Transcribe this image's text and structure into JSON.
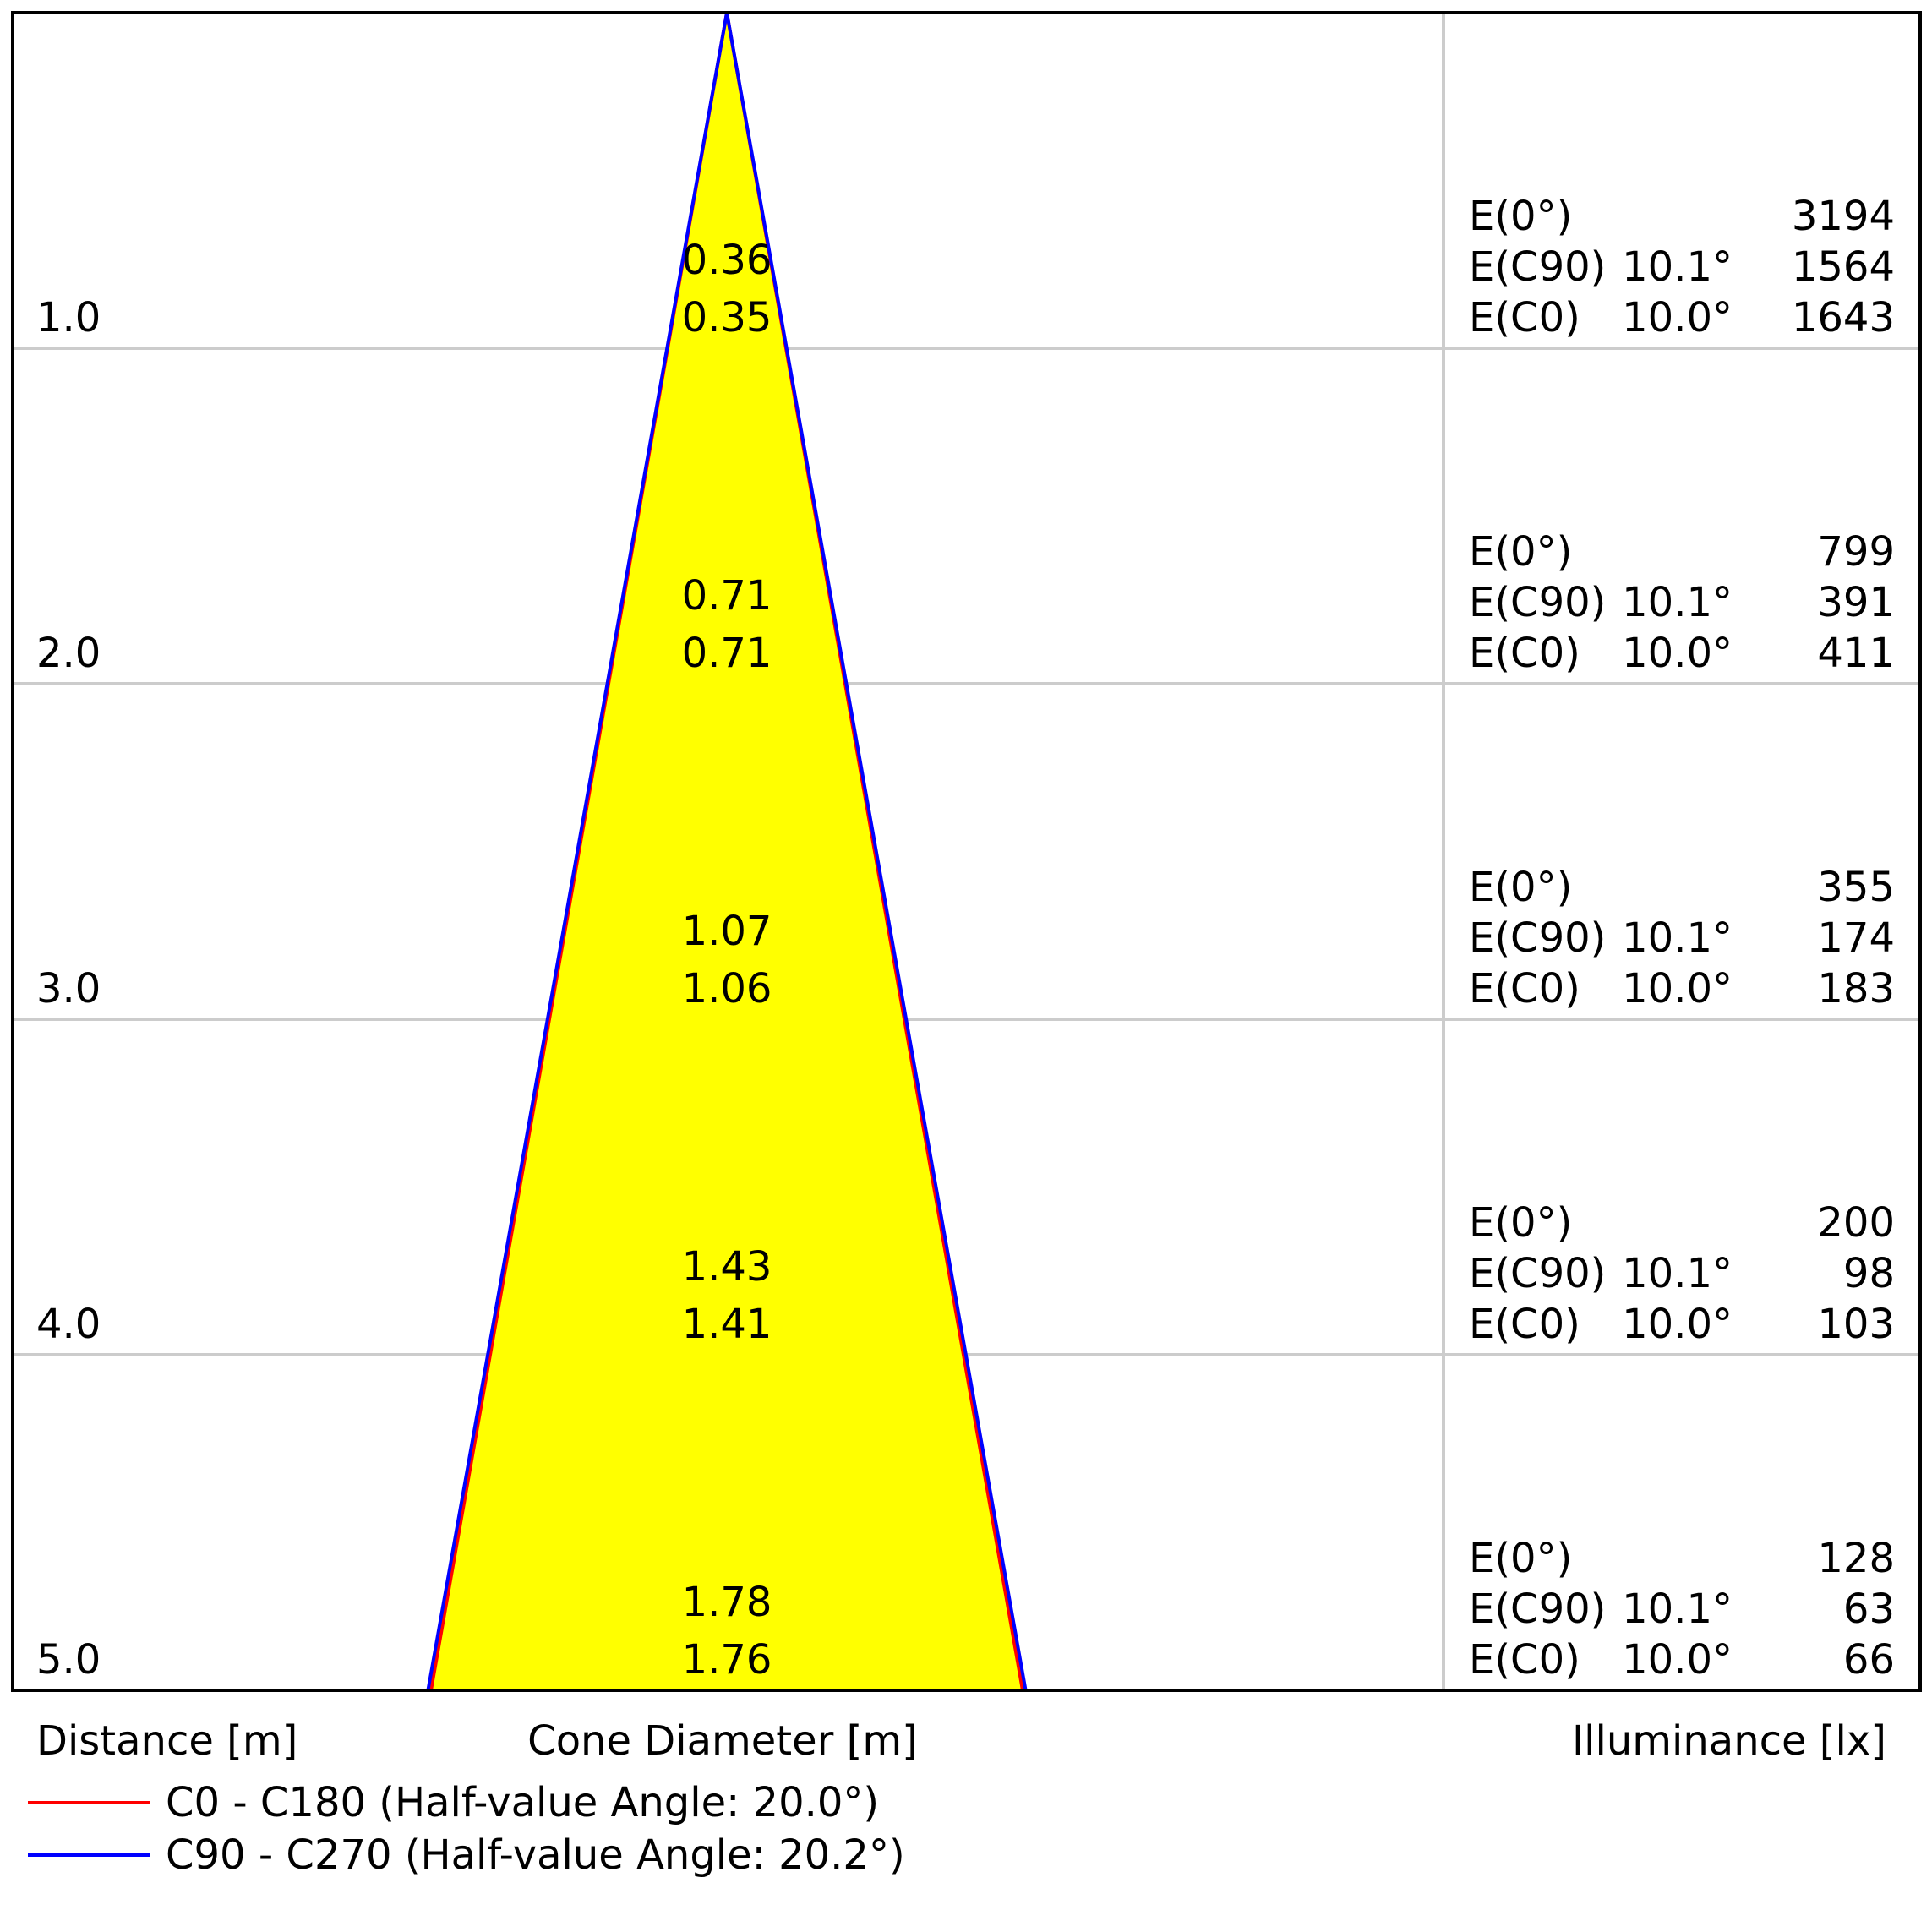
{
  "chart_data": {
    "type": "cone-diagram",
    "axis_labels": {
      "distance": "Distance [m]",
      "cone": "Cone Diameter [m]",
      "illuminance": "Illuminance [lx]"
    },
    "rows": [
      {
        "distance": "1.0",
        "c90_diameter": "0.36",
        "c0_diameter": "0.35",
        "illuminance": [
          {
            "name": "E(0°)",
            "angle": "",
            "value": "3194"
          },
          {
            "name": "E(C90)",
            "angle": "10.1°",
            "value": "1564"
          },
          {
            "name": "E(C0)",
            "angle": "10.0°",
            "value": "1643"
          }
        ]
      },
      {
        "distance": "2.0",
        "c90_diameter": "0.71",
        "c0_diameter": "0.71",
        "illuminance": [
          {
            "name": "E(0°)",
            "angle": "",
            "value": "799"
          },
          {
            "name": "E(C90)",
            "angle": "10.1°",
            "value": "391"
          },
          {
            "name": "E(C0)",
            "angle": "10.0°",
            "value": "411"
          }
        ]
      },
      {
        "distance": "3.0",
        "c90_diameter": "1.07",
        "c0_diameter": "1.06",
        "illuminance": [
          {
            "name": "E(0°)",
            "angle": "",
            "value": "355"
          },
          {
            "name": "E(C90)",
            "angle": "10.1°",
            "value": "174"
          },
          {
            "name": "E(C0)",
            "angle": "10.0°",
            "value": "183"
          }
        ]
      },
      {
        "distance": "4.0",
        "c90_diameter": "1.43",
        "c0_diameter": "1.41",
        "illuminance": [
          {
            "name": "E(0°)",
            "angle": "",
            "value": "200"
          },
          {
            "name": "E(C90)",
            "angle": "10.1°",
            "value": "98"
          },
          {
            "name": "E(C0)",
            "angle": "10.0°",
            "value": "103"
          }
        ]
      },
      {
        "distance": "5.0",
        "c90_diameter": "1.78",
        "c0_diameter": "1.76",
        "illuminance": [
          {
            "name": "E(0°)",
            "angle": "",
            "value": "128"
          },
          {
            "name": "E(C90)",
            "angle": "10.1°",
            "value": "63"
          },
          {
            "name": "E(C0)",
            "angle": "10.0°",
            "value": "66"
          }
        ]
      }
    ],
    "series": [
      {
        "name": "C0 - C180 (Half-value Angle: 20.0°)",
        "half_value_angle": 20.0,
        "color": "#ff0000"
      },
      {
        "name": "C90 - C270 (Half-value Angle: 20.2°)",
        "half_value_angle": 20.2,
        "color": "#0000ff"
      }
    ],
    "cone_fill": "#ffff00",
    "grid_color": "#cccccc",
    "max_distance": 5.0
  }
}
